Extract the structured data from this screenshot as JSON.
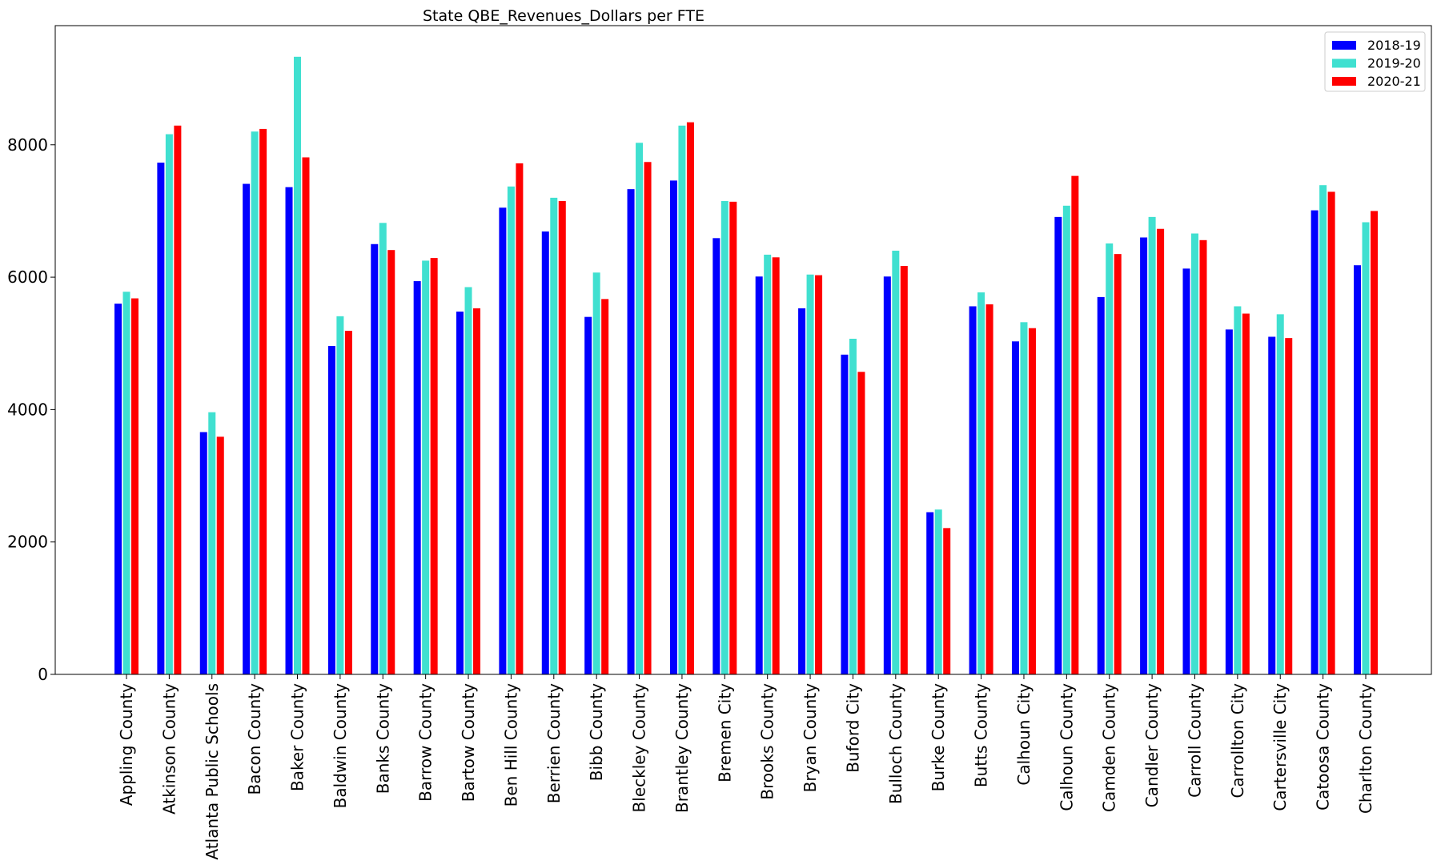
{
  "chart_data": {
    "type": "bar",
    "title": "State QBE_Revenues_Dollars per FTE",
    "xlabel": "",
    "ylabel": "",
    "ylim": [
      0,
      9800
    ],
    "yticks": [
      0,
      2000,
      4000,
      6000,
      8000
    ],
    "ytick_labels": [
      "0",
      "2000",
      "4000",
      "6000",
      "8000"
    ],
    "grid": false,
    "legend_position": "top-right",
    "categories": [
      "Appling County",
      "Atkinson County",
      "Atlanta Public Schools",
      "Bacon County",
      "Baker County",
      "Baldwin County",
      "Banks County",
      "Barrow County",
      "Bartow County",
      "Ben Hill County",
      "Berrien County",
      "Bibb County",
      "Bleckley County",
      "Brantley County",
      "Bremen City",
      "Brooks County",
      "Bryan County",
      "Buford City",
      "Bulloch County",
      "Burke County",
      "Butts County",
      "Calhoun City",
      "Calhoun County",
      "Camden County",
      "Candler County",
      "Carroll County",
      "Carrollton City",
      "Cartersville City",
      "Catoosa County",
      "Charlton County"
    ],
    "series": [
      {
        "name": "2018-19",
        "color": "#0000ff",
        "values": [
          5600,
          7730,
          3660,
          7410,
          7360,
          4960,
          6500,
          5940,
          5480,
          7050,
          6690,
          5400,
          7330,
          7460,
          6590,
          6010,
          5530,
          4830,
          6010,
          2450,
          5560,
          5030,
          6910,
          5700,
          6600,
          6130,
          5210,
          5100,
          7010,
          6180
        ]
      },
      {
        "name": "2019-20",
        "color": "#40e0d0",
        "values": [
          5780,
          8160,
          3960,
          8200,
          9330,
          5410,
          6820,
          6250,
          5850,
          7370,
          7200,
          6070,
          8030,
          8290,
          7150,
          6340,
          6040,
          5070,
          6400,
          2490,
          5770,
          5320,
          7080,
          6510,
          6910,
          6660,
          5560,
          5440,
          7390,
          6830
        ]
      },
      {
        "name": "2020-21",
        "color": "#ff0000",
        "values": [
          5680,
          8290,
          3590,
          8240,
          7810,
          5190,
          6410,
          6290,
          5530,
          7720,
          7150,
          5670,
          7740,
          8340,
          7140,
          6300,
          6030,
          4570,
          6170,
          2210,
          5590,
          5230,
          7530,
          6350,
          6730,
          6560,
          5450,
          5080,
          7290,
          7000
        ]
      }
    ]
  }
}
